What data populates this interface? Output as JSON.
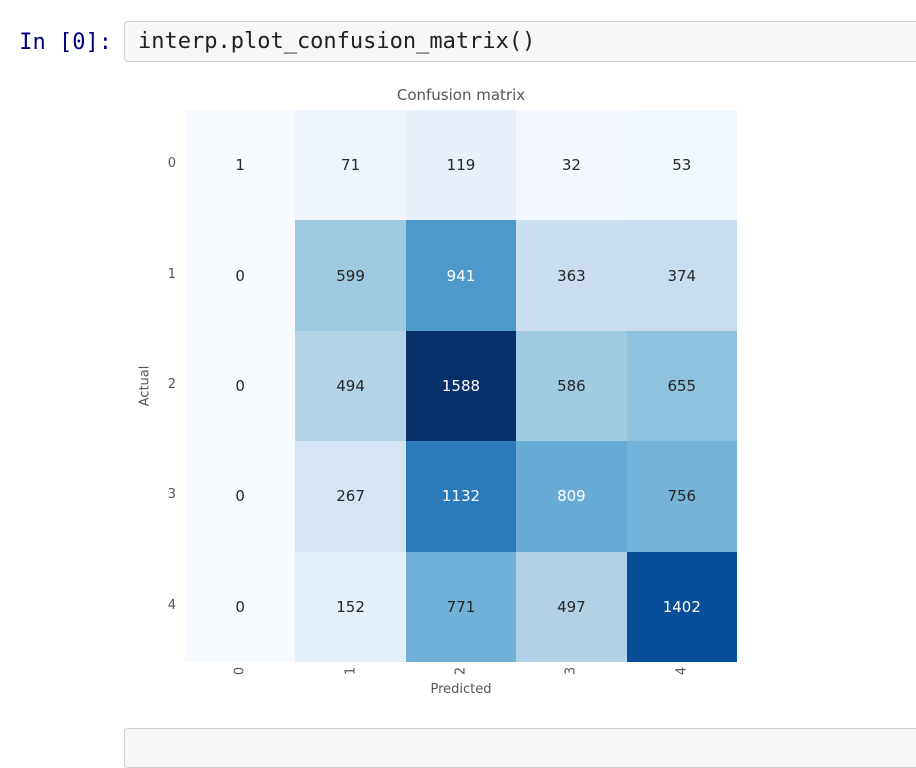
{
  "notebook": {
    "input_cell": {
      "prompt": "In [0]:",
      "code": "interp.plot_confusion_matrix()"
    },
    "colors": {
      "prompt_text": "#000080",
      "code_text": "#202020",
      "cell_background": "#f7f7f7",
      "cell_border": "#cfcfcf"
    }
  },
  "chart_data": {
    "type": "heatmap",
    "title": "Confusion matrix",
    "xlabel": "Predicted",
    "ylabel": "Actual",
    "x_ticklabels": [
      "0",
      "1",
      "2",
      "3",
      "4"
    ],
    "y_ticklabels": [
      "0",
      "1",
      "2",
      "3",
      "4"
    ],
    "x_tick_rotation_deg": 90,
    "matrix": [
      [
        1,
        71,
        119,
        32,
        53
      ],
      [
        0,
        599,
        941,
        363,
        374
      ],
      [
        0,
        494,
        1588,
        586,
        655
      ],
      [
        0,
        267,
        1132,
        809,
        756
      ],
      [
        0,
        152,
        771,
        497,
        1402
      ]
    ],
    "colormap": "Blues",
    "vmin": 0,
    "vmax": 1588,
    "white_text_threshold": 794,
    "colors": {
      "cell_text_dark": "#262626",
      "cell_text_light": "#ffffff",
      "axis_text": "#555555",
      "max_cell": "#08306b",
      "min_cell": "#f7fbff"
    },
    "grid": false,
    "legend": "none"
  }
}
